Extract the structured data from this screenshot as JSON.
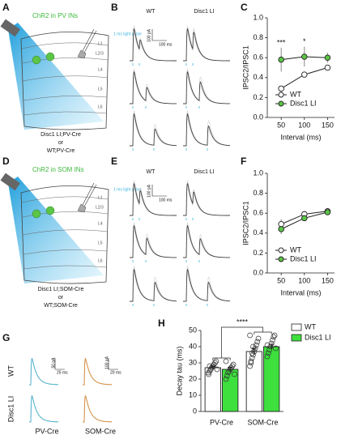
{
  "diagrams": {
    "A": {
      "label": "A",
      "title": "ChR2 in PV INs",
      "layers": [
        "L1",
        "L2/3",
        "L4",
        "L5",
        "L6"
      ],
      "genotypes": [
        "Disc1 LI;PV-Cre",
        "or",
        "WT;PV-Cre"
      ]
    },
    "B": {
      "label": "B",
      "columns": [
        "WT",
        "Disc1 LI"
      ],
      "stimulus": "1 ms light pulse",
      "scale_y": "100 pA",
      "scale_x": "100 ms"
    },
    "D": {
      "label": "D",
      "title": "ChR2 in SOM INs",
      "layers": [
        "L1",
        "L2/3",
        "L4",
        "L5",
        "L6"
      ],
      "genotypes": [
        "Disc1 LI;SOM-Cre",
        "or",
        "WT;SOM-Cre"
      ]
    },
    "E": {
      "label": "E",
      "columns": [
        "WT",
        "Disc1 LI"
      ],
      "stimulus": "1 ms light pulse",
      "scale_y": "100 pA",
      "scale_x": "100 ms"
    },
    "G": {
      "label": "G",
      "rows": [
        "WT",
        "Disc1 LI"
      ],
      "columns": [
        "PV-Cre",
        "SOM-Cre"
      ],
      "scales": [
        "50 pA",
        "25 ms",
        "100 pA",
        "20 ms"
      ]
    }
  },
  "chart_data": [
    {
      "type": "line",
      "panel": "C",
      "y_label": "IPSC2/IPSC1",
      "x_label": "Interval (ms)",
      "x": [
        50,
        100,
        150
      ],
      "xlim": [
        20,
        165
      ],
      "xticks": [
        50,
        100,
        150
      ],
      "ylim": [
        0,
        1
      ],
      "yticks": [
        {
          "value": 0,
          "label": "0.0"
        },
        0.2,
        0.4,
        0.6,
        0.8,
        {
          "value": 1,
          "label": "1.0"
        }
      ],
      "significance": [
        "***",
        "*",
        null
      ],
      "legend": "lower right",
      "series": [
        {
          "name": "WT",
          "color": "#ffffff",
          "values": [
            0.29,
            0.43,
            0.5
          ],
          "errors": [
            0.02,
            0.02,
            0.02
          ]
        },
        {
          "name": "Disc1 LI",
          "color": "#5cc546",
          "values": [
            0.58,
            0.61,
            0.6
          ],
          "errors": [
            0.12,
            0.1,
            0.05
          ]
        }
      ]
    },
    {
      "type": "line",
      "panel": "F",
      "y_label": "IPSC2/IPSC1",
      "x_label": "Interval (ms)",
      "x": [
        50,
        100,
        150
      ],
      "xlim": [
        20,
        165
      ],
      "xticks": [
        50,
        100,
        150
      ],
      "ylim": [
        0,
        1
      ],
      "yticks": [
        {
          "value": 0,
          "label": "0.0"
        },
        0.2,
        0.4,
        0.6,
        0.8,
        {
          "value": 1,
          "label": "1.0"
        }
      ],
      "legend": "lower right",
      "series": [
        {
          "name": "WT",
          "color": "#ffffff",
          "values": [
            0.49,
            0.59,
            0.62
          ],
          "errors": [
            0.05,
            0.03,
            0.02
          ]
        },
        {
          "name": "Disc1 LI",
          "color": "#5cc546",
          "values": [
            0.44,
            0.55,
            0.61
          ],
          "errors": [
            0.05,
            0.03,
            0.02
          ]
        }
      ]
    },
    {
      "type": "bar",
      "panel": "H",
      "y_label": "Decay tau (ms)",
      "categories": [
        "PV-Cre",
        "SOM-Cre"
      ],
      "ylim": [
        0,
        50
      ],
      "yticks": [
        0,
        10,
        20,
        30,
        40,
        50
      ],
      "significance": "****",
      "legend": "upper right",
      "series": [
        {
          "name": "WT",
          "color": "#ffffff",
          "values": [
            27,
            37
          ],
          "errors": [
            1.0,
            2.0
          ],
          "points": [
            [
              23,
              25,
              26,
              27,
              28,
              29,
              30,
              31,
              26,
              24,
              28
            ],
            [
              28,
              30,
              33,
              35,
              37,
              39,
              41,
              43,
              45,
              47,
              31,
              36,
              40
            ]
          ]
        },
        {
          "name": "Disc1 LI",
          "color": "#3de03d",
          "values": [
            26,
            40
          ],
          "errors": [
            1.3,
            1.5
          ],
          "points": [
            [
              20,
              22,
              24,
              25,
              26,
              27,
              28,
              29,
              23,
              31
            ],
            [
              34,
              36,
              38,
              40,
              42,
              44,
              46,
              47,
              39,
              41
            ]
          ]
        }
      ]
    }
  ]
}
